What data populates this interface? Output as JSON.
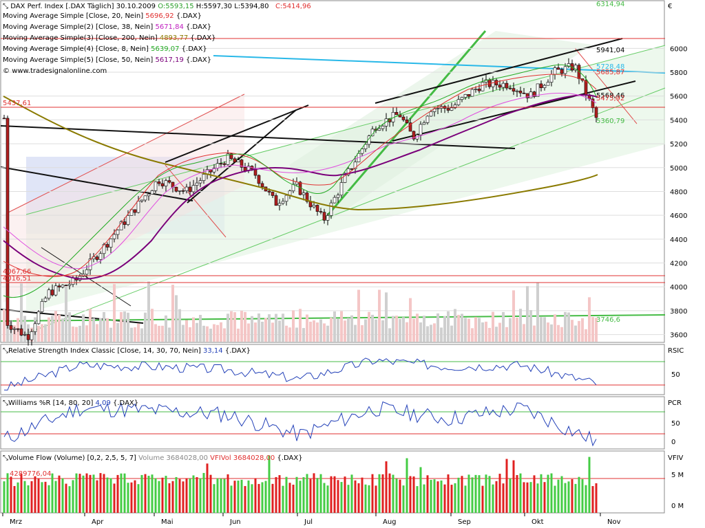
{
  "header": {
    "instrument": "DAX Perf. Index [.DAX Täglich] 30.10.2009",
    "ohlc_o": "O:5593,15",
    "ohlc_h": "H:5597,30",
    "ohlc_l": "L:5394,80",
    "ohlc_c": "C:5414,96",
    "website": "www.tradesignalonline.com",
    "currency": "€"
  },
  "price_legend": [
    {
      "label": "Moving Average Simple [Close, 20, Nein]",
      "value": "5696,92",
      "tag": "{.DAX}",
      "color": "#e03030"
    },
    {
      "label": "Moving Average Simple(2) [Close, 38, Nein]",
      "value": "5671,84",
      "tag": "{.DAX}",
      "color": "#c020c0"
    },
    {
      "label": "Moving Average Simple(3) [Close, 200, Nein]",
      "value": "4893,77",
      "tag": "{.DAX}",
      "color": "#8a7a00"
    },
    {
      "label": "Moving Average Simple(4) [Close, 8, Nein]",
      "value": "5639,07",
      "tag": "{.DAX}",
      "color": "#22aa22"
    },
    {
      "label": "Moving Average Simple(5) [Close, 50, Nein]",
      "value": "5617,19",
      "tag": "{.DAX}",
      "color": "#7a007a"
    }
  ],
  "price_annotations": {
    "a6314": "6314,94",
    "a5941": "5941,04",
    "a5728": "5728,48",
    "a5685": "5685,87",
    "a5568": "5568,46",
    "a5475": "5475,92",
    "a5360": "5360,79",
    "a5437": "5437,61",
    "a4067": "4067,66",
    "a4016": "4016,51",
    "a3746": "3746,6"
  },
  "panels": {
    "rsi": {
      "label": "Relative Strength Index Classic [Close, 14, 30, 70, Nein]",
      "value": "33,14",
      "tag": "{.DAX}",
      "axis_title": "RSIC",
      "ticks": [
        "50"
      ]
    },
    "williams": {
      "label": "Williams %R [14, 80, 20]",
      "value": "4,09",
      "tag": "{.DAX}",
      "axis_title": "PCR",
      "ticks": [
        "50",
        "0"
      ]
    },
    "volume": {
      "label": "Volume Flow (Volume) [0,2, 2,5, 5, 7]",
      "vol_label": "Volume 3684028,00",
      "vfivol_label": "VFIVol 3684028,00",
      "tag": "{.DAX}",
      "axis_title": "VFIV",
      "ticks": [
        "5 M",
        "0 M"
      ],
      "annotation": "4289776,04"
    }
  },
  "chart_data": [
    {
      "type": "line",
      "title": "DAX Perf. Index [.DAX Täglich] 30.10.2009",
      "x_labels": [
        "Mrz",
        "Apr",
        "Mai",
        "Jun",
        "Jul",
        "Aug",
        "Sep",
        "Okt",
        "Nov"
      ],
      "y_ticks": [
        3600,
        3800,
        4000,
        4200,
        4400,
        4600,
        4800,
        5000,
        5200,
        5400,
        5600,
        5800,
        6000
      ],
      "ylim": [
        3540,
        6400
      ],
      "grid": true,
      "series": [
        {
          "name": "DAX Perf. Index",
          "kind": "candlestick-close",
          "x": [
            "Mrz",
            "Apr",
            "Mai",
            "Jun",
            "Jul",
            "Aug",
            "Sep",
            "Okt",
            "Nov"
          ],
          "values": [
            3700,
            4000,
            4900,
            5050,
            4600,
            5400,
            5550,
            5650,
            5415
          ]
        },
        {
          "name": "Moving Average Simple(3) [Close, 200, Nein]",
          "x": [
            "Mrz",
            "Apr",
            "Mai",
            "Jun",
            "Jul",
            "Aug",
            "Sep",
            "Okt",
            "Nov"
          ],
          "values": [
            5420,
            5000,
            4700,
            4620,
            4560,
            4600,
            4700,
            4790,
            4894
          ]
        }
      ],
      "horizontal_levels": [
        6314.94,
        5941.04,
        5728.48,
        5685.87,
        5568.46,
        5475.92,
        5437.61,
        5360.79,
        4067.66,
        4016.51,
        3746.6
      ]
    },
    {
      "type": "line",
      "title": "Relative Strength Index Classic [Close, 14, 30, 70, Nein]",
      "x": [
        "Mrz",
        "Apr",
        "Mai",
        "Jun",
        "Jul",
        "Aug",
        "Sep",
        "Okt",
        "Nov"
      ],
      "series": [
        {
          "name": "RSIC",
          "values": [
            25,
            62,
            60,
            55,
            40,
            70,
            60,
            62,
            33.14
          ]
        }
      ],
      "ylim": [
        15,
        95
      ],
      "levels": [
        30,
        70
      ]
    },
    {
      "type": "line",
      "title": "Williams %R [14, 80, 20]",
      "x": [
        "Mrz",
        "Apr",
        "Mai",
        "Jun",
        "Jul",
        "Aug",
        "Sep",
        "Okt",
        "Nov"
      ],
      "series": [
        {
          "name": "PCR",
          "values": [
            10,
            85,
            80,
            70,
            20,
            85,
            60,
            85,
            4.09
          ]
        }
      ],
      "ylim": [
        -10,
        110
      ],
      "levels": [
        20,
        80
      ]
    },
    {
      "type": "bar",
      "title": "Volume Flow (Volume) [0,2, 2,5, 5, 7]",
      "x": [
        "Mrz",
        "Apr",
        "Mai",
        "Jun",
        "Jul",
        "Aug",
        "Sep",
        "Okt",
        "Nov"
      ],
      "series": [
        {
          "name": "Volume",
          "values": [
            4000000,
            3600000,
            3500000,
            3600000,
            3200000,
            3300000,
            3700000,
            4100000,
            3684028
          ]
        }
      ],
      "ylim": [
        0,
        6500000
      ],
      "levels": [
        4289776.04
      ]
    }
  ]
}
